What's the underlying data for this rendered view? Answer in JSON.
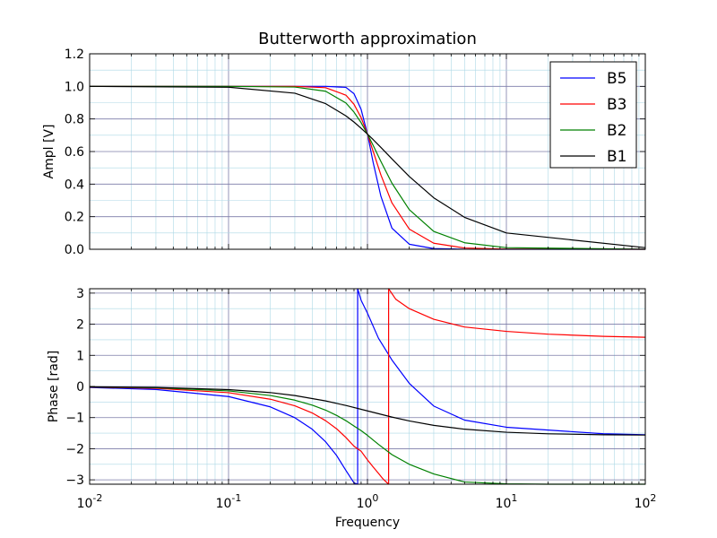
{
  "chart_data": [
    {
      "type": "line",
      "title": "Butterworth approximation",
      "xlabel": "",
      "ylabel": "Ampl [V]",
      "xscale": "log",
      "xlim": [
        0.01,
        100
      ],
      "ylim": [
        0,
        1.2
      ],
      "yticks": [
        "0.0",
        "0.2",
        "0.4",
        "0.6",
        "0.8",
        "1.0",
        "1.2"
      ],
      "grid": true,
      "legend": "top-right",
      "series": [
        {
          "name": "B5",
          "color": "#0000ff",
          "x": [
            0.01,
            0.1,
            0.3,
            0.5,
            0.7,
            0.8,
            0.9,
            1.0,
            1.1,
            1.25,
            1.5,
            2,
            3,
            5,
            10,
            100
          ],
          "values": [
            1.0,
            1.0,
            1.0,
            1.0,
            0.994,
            0.955,
            0.859,
            0.707,
            0.531,
            0.325,
            0.13,
            0.031,
            0.004,
            0.0003,
            0.0,
            0.0
          ]
        },
        {
          "name": "B3",
          "color": "#ff0000",
          "x": [
            0.01,
            0.1,
            0.3,
            0.5,
            0.7,
            0.8,
            0.9,
            1.0,
            1.1,
            1.25,
            1.5,
            2,
            3,
            5,
            10,
            100
          ],
          "values": [
            1.0,
            1.0,
            1.0,
            0.992,
            0.946,
            0.89,
            0.808,
            0.707,
            0.6,
            0.456,
            0.285,
            0.124,
            0.037,
            0.008,
            0.001,
            0.0
          ]
        },
        {
          "name": "B2",
          "color": "#008000",
          "x": [
            0.01,
            0.1,
            0.3,
            0.5,
            0.7,
            0.8,
            0.9,
            1.0,
            1.1,
            1.25,
            1.5,
            2,
            3,
            5,
            10,
            100
          ],
          "values": [
            1.0,
            1.0,
            0.996,
            0.97,
            0.898,
            0.842,
            0.777,
            0.707,
            0.637,
            0.539,
            0.406,
            0.243,
            0.11,
            0.04,
            0.01,
            0.0001
          ]
        },
        {
          "name": "B1",
          "color": "#000000",
          "x": [
            0.01,
            0.1,
            0.3,
            0.5,
            0.7,
            0.8,
            0.9,
            1.0,
            1.1,
            1.25,
            1.5,
            2,
            3,
            5,
            10,
            100
          ],
          "values": [
            1.0,
            0.995,
            0.958,
            0.894,
            0.819,
            0.781,
            0.743,
            0.707,
            0.673,
            0.625,
            0.555,
            0.447,
            0.316,
            0.196,
            0.1,
            0.01
          ]
        }
      ]
    },
    {
      "type": "line",
      "title": "",
      "xlabel": "Frequency",
      "ylabel": "Phase [rad]",
      "xscale": "log",
      "xlim": [
        0.01,
        100
      ],
      "ylim": [
        -3.14,
        3.14
      ],
      "xticks": [
        "10-2",
        "10-1",
        "100",
        "101",
        "102"
      ],
      "yticks": [
        "3",
        "2",
        "1",
        "0",
        "−1",
        "−2",
        "−3"
      ],
      "grid": true,
      "series": [
        {
          "name": "B5",
          "color": "#0000ff",
          "x": [
            0.01,
            0.03,
            0.1,
            0.2,
            0.3,
            0.4,
            0.5,
            0.6,
            0.7,
            0.8,
            0.85,
            0.85,
            0.9,
            1.0,
            1.2,
            1.5,
            2,
            3,
            5,
            10,
            20,
            50,
            100
          ],
          "values": [
            -0.032,
            -0.097,
            -0.324,
            -0.656,
            -1.003,
            -1.373,
            -1.777,
            -2.22,
            -2.7,
            -3.1,
            -3.14,
            3.14,
            2.77,
            2.356,
            1.55,
            0.85,
            0.1,
            -0.63,
            -1.08,
            -1.31,
            -1.4,
            -1.52,
            -1.55
          ]
        },
        {
          "name": "B3",
          "color": "#ff0000",
          "x": [
            0.01,
            0.03,
            0.1,
            0.2,
            0.3,
            0.4,
            0.5,
            0.6,
            0.7,
            0.8,
            0.9,
            1.0,
            1.1,
            1.2,
            1.3,
            1.42,
            1.42,
            1.6,
            2,
            3,
            5,
            10,
            20,
            50,
            100
          ],
          "values": [
            -0.02,
            -0.06,
            -0.2,
            -0.41,
            -0.62,
            -0.85,
            -1.1,
            -1.36,
            -1.64,
            -1.92,
            -2.08,
            -2.36,
            -2.59,
            -2.79,
            -2.98,
            -3.14,
            3.14,
            2.8,
            2.5,
            2.16,
            1.91,
            1.77,
            1.68,
            1.61,
            1.58
          ]
        },
        {
          "name": "B2",
          "color": "#008000",
          "x": [
            0.01,
            0.03,
            0.1,
            0.2,
            0.3,
            0.4,
            0.5,
            0.6,
            0.7,
            0.8,
            0.9,
            1.0,
            1.2,
            1.5,
            2,
            3,
            5,
            10,
            20,
            50,
            100
          ],
          "values": [
            -0.014,
            -0.042,
            -0.142,
            -0.29,
            -0.44,
            -0.6,
            -0.76,
            -0.93,
            -1.1,
            -1.27,
            -1.42,
            -1.571,
            -1.86,
            -2.19,
            -2.5,
            -2.81,
            -3.07,
            -3.13,
            -3.14,
            -3.14,
            -3.14
          ]
        },
        {
          "name": "B1",
          "color": "#000000",
          "x": [
            0.01,
            0.03,
            0.1,
            0.2,
            0.3,
            0.5,
            0.7,
            1.0,
            1.5,
            2,
            3,
            5,
            10,
            20,
            50,
            100
          ],
          "values": [
            -0.01,
            -0.03,
            -0.1,
            -0.197,
            -0.291,
            -0.464,
            -0.611,
            -0.785,
            -0.983,
            -1.107,
            -1.249,
            -1.373,
            -1.471,
            -1.521,
            -1.551,
            -1.561
          ]
        }
      ]
    }
  ]
}
